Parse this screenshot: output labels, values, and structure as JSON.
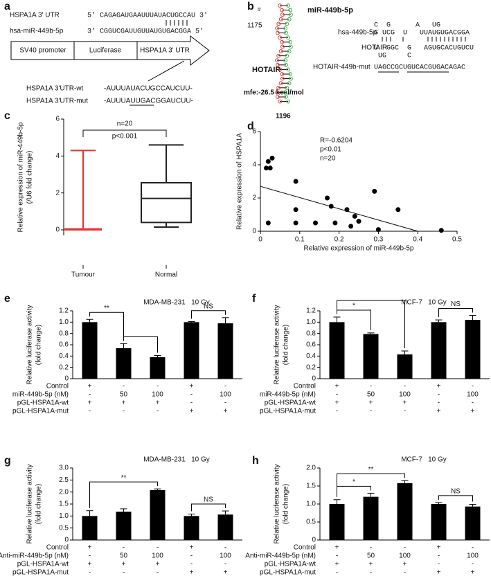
{
  "panel_a": {
    "label": "a",
    "utr_label": "HSPA1A 3' UTR",
    "utr_seq": "5' CAGAGAUGAAUUUAUACUGCCAU 3'",
    "mir_label": "hsa-miR-449b-5p",
    "mir_seq": "3' CGGUCGAUUGUUAUGUGACGGA 5'",
    "construct": [
      "SV40 promoter",
      "Luciferase",
      "HSPA1A 3' UTR"
    ],
    "wt_label": "HSPA1A 3'UTR-wt",
    "wt_seq": "-AUUUAUACUGCCAUCUU-",
    "mut_label": "HSPA1A 3'UTR-mut",
    "mut_seq": "-AUUUAUUGACGGAUCUU-"
  },
  "panel_b": {
    "label": "b",
    "five_prime": "5'",
    "start": "1175",
    "mirna": "miR-449b-5p",
    "target": "HOTAIR",
    "mfe": "mfe:-26.5 kcal/mol",
    "end": "1196",
    "pairing": {
      "mir_label": "hsa-449b-5p",
      "mir_top": "C  G      A   UG",
      "mir_seq": "G UCG  U   UUAUGUGACGGA",
      "target_label": "HOTAIR",
      "target_seq": "U  GGC  G   AGUGCACUGUCU",
      "target_bottom": " UG     C",
      "mut_label": "HOTAIR-449b-mut",
      "mut_seq": "UAGCCGCUGUCACGUGACAGAC"
    }
  },
  "chart_data": [
    {
      "type": "box",
      "panel": "c",
      "ylabel": [
        "Relative expression of miR-449b-5p",
        "(/U6 fold change)"
      ],
      "categories": [
        "Tumour",
        "Normal"
      ],
      "min": [
        0,
        0.15
      ],
      "q1": [
        0,
        0.4
      ],
      "median": [
        0,
        1.7
      ],
      "q3": [
        0.05,
        2.55
      ],
      "max": [
        4.3,
        4.6
      ],
      "colors": [
        "#e8312b",
        "#222222"
      ],
      "ylim": [
        -0.3,
        6
      ],
      "yticks": [
        0,
        2,
        4,
        6
      ],
      "annotations": [
        "n=20",
        "p<0.001"
      ]
    },
    {
      "type": "scatter",
      "panel": "d",
      "ylabel": "Relative expression of HSPA1A",
      "xlabel": "Relative expression of miR-449b-5p",
      "x": [
        0.015,
        0.025,
        0.02,
        0.03,
        0.02,
        0.09,
        0.09,
        0.09,
        0.14,
        0.17,
        0.18,
        0.19,
        0.22,
        0.23,
        0.24,
        0.25,
        0.29,
        0.3,
        0.35,
        0.46
      ],
      "y": [
        3.8,
        3.8,
        4.2,
        4.4,
        0.5,
        3.0,
        1.3,
        0.5,
        0.5,
        2.0,
        1.5,
        0.5,
        1.3,
        0.3,
        0.9,
        0.6,
        2.4,
        0.1,
        1.3,
        0.05
      ],
      "color": "#000000",
      "trendline": {
        "x": [
          0,
          0.4
        ],
        "y": [
          2.7,
          0
        ]
      },
      "xlim": [
        0,
        0.5
      ],
      "xticks": [
        0,
        0.1,
        0.2,
        0.3,
        0.4,
        0.5
      ],
      "ylim": [
        0,
        6
      ],
      "yticks": [
        0,
        2,
        4,
        6
      ],
      "annotations": [
        "R=-0.6204",
        "p<0.01",
        "n=20"
      ]
    },
    {
      "type": "bar",
      "panel": "e",
      "title": "MDA-MB-231   10 Gy",
      "ylabel": [
        "Relative luciferase activity",
        "(fold change)"
      ],
      "color": "#000000",
      "values": [
        1.0,
        0.54,
        0.38,
        1.0,
        0.98
      ],
      "errors": [
        0.05,
        0.08,
        0.03,
        0.01,
        0.1
      ],
      "ylim": [
        0,
        1.2
      ],
      "yticks": [
        0,
        0.2,
        0.4,
        0.6,
        0.8,
        {
          "value": 1,
          "label": "1.0"
        },
        1.2
      ],
      "conditions": [
        {
          "label": "Control",
          "values": [
            "+",
            "-",
            "-",
            "+",
            "-"
          ]
        },
        {
          "label": "miR-449b-5p (nM)",
          "values": [
            "-",
            "50",
            "100",
            "-",
            "100"
          ]
        },
        {
          "label": "pGL-HSPA1A-wt",
          "values": [
            "+",
            "+",
            "+",
            "-",
            "-"
          ]
        },
        {
          "label": "pGL-HSPA1A-mut",
          "values": [
            "-",
            "-",
            "-",
            "+",
            "+"
          ]
        }
      ],
      "brackets": [
        {
          "from": 0,
          "to": 1,
          "label": "**"
        },
        {
          "from": 1,
          "to": 2
        },
        {
          "from": 3,
          "to": 4,
          "label": "NS"
        }
      ]
    },
    {
      "type": "bar",
      "panel": "f",
      "title": "MCF-7   10 Gy",
      "ylabel": [
        "Relative luciferase activity",
        "(fold change)"
      ],
      "color": "#000000",
      "values": [
        1.0,
        0.79,
        0.43,
        1.0,
        1.04
      ],
      "errors": [
        0.09,
        0.02,
        0.06,
        0.04,
        0.08
      ],
      "ylim": [
        0,
        1.2
      ],
      "yticks": [
        0,
        0.2,
        0.4,
        0.6,
        0.8,
        {
          "value": 1,
          "label": "1.0"
        },
        1.2
      ],
      "conditions": [
        {
          "label": "Control",
          "values": [
            "+",
            "-",
            "-",
            "+",
            "-"
          ]
        },
        {
          "label": "miR-449b-5p (nM)",
          "values": [
            "-",
            "50",
            "100",
            "-",
            "100"
          ]
        },
        {
          "label": "pGL-HSPA1A-wt",
          "values": [
            "+",
            "+",
            "+",
            "-",
            "-"
          ]
        },
        {
          "label": "pGL-HSPA1A-mut",
          "values": [
            "-",
            "-",
            "-",
            "+",
            "+"
          ]
        }
      ],
      "brackets": [
        {
          "from": 0,
          "to": 1,
          "label": "*"
        },
        {
          "from": 0,
          "to": 2
        },
        {
          "from": 3,
          "to": 4,
          "label": "NS"
        }
      ]
    },
    {
      "type": "bar",
      "panel": "g",
      "title": "MDA-MB-231   10 Gy",
      "ylabel": [
        "Relative luciferase activity",
        "(fold change)"
      ],
      "color": "#000000",
      "values": [
        1.0,
        1.18,
        2.08,
        1.0,
        1.06
      ],
      "errors": [
        0.22,
        0.12,
        0.05,
        0.08,
        0.15
      ],
      "ylim": [
        0,
        3
      ],
      "yticks": [
        0,
        0.5,
        {
          "value": 1,
          "label": "1.0"
        },
        1.5,
        {
          "value": 2,
          "label": "2.0"
        },
        2.5,
        {
          "value": 3,
          "label": "3.0"
        }
      ],
      "conditions": [
        {
          "label": "Control",
          "values": [
            "+",
            "-",
            "-",
            "+",
            "-"
          ]
        },
        {
          "label": "Anti-miR-449b-5p (nM)",
          "values": [
            "-",
            "50",
            "100",
            "-",
            "100"
          ]
        },
        {
          "label": "pGL-HSPA1A-wt",
          "values": [
            "+",
            "+",
            "+",
            "-",
            "-"
          ]
        },
        {
          "label": "pGL-HSPA1A-mut",
          "values": [
            "-",
            "-",
            "-",
            "+",
            "+"
          ]
        }
      ],
      "brackets": [
        {
          "from": 0,
          "to": 2,
          "label": "**"
        },
        {
          "from": 3,
          "to": 4,
          "label": "NS"
        }
      ]
    },
    {
      "type": "bar",
      "panel": "h",
      "title": "MCF-7   10 Gy",
      "ylabel": [
        "Relative luciferase activity",
        "(fold change)"
      ],
      "color": "#000000",
      "values": [
        1.0,
        1.2,
        1.58,
        1.0,
        0.93
      ],
      "errors": [
        0.12,
        0.1,
        0.07,
        0.04,
        0.06
      ],
      "ylim": [
        0,
        2
      ],
      "yticks": [
        0,
        0.5,
        {
          "value": 1,
          "label": "1.0"
        },
        1.5,
        {
          "value": 2,
          "label": "2.0"
        }
      ],
      "conditions": [
        {
          "label": "Control",
          "values": [
            "+",
            "-",
            "-",
            "+",
            "-"
          ]
        },
        {
          "label": "Anti-miR-449b-5p (nM)",
          "values": [
            "-",
            "50",
            "100",
            "-",
            "100"
          ]
        },
        {
          "label": "pGL-HSPA1A-wt",
          "values": [
            "+",
            "+",
            "+",
            "-",
            "-"
          ]
        },
        {
          "label": "pGL-HSPA1A-mut",
          "values": [
            "-",
            "-",
            "-",
            "+",
            "+"
          ]
        }
      ],
      "brackets": [
        {
          "from": 0,
          "to": 1,
          "label": "*"
        },
        {
          "from": 0,
          "to": 2,
          "label": "**"
        },
        {
          "from": 3,
          "to": 4,
          "label": "NS"
        }
      ]
    }
  ]
}
